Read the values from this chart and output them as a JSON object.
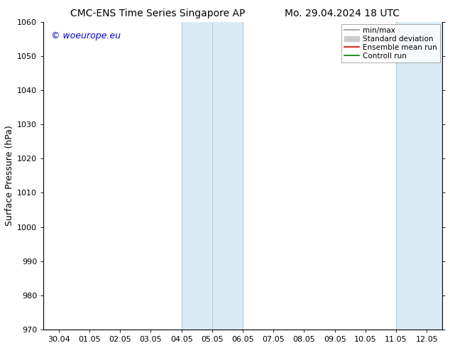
{
  "title_left": "CMC-ENS Time Series Singapore AP",
  "title_right": "Mo. 29.04.2024 18 UTC",
  "ylabel": "Surface Pressure (hPa)",
  "ylim": [
    970,
    1060
  ],
  "yticks": [
    970,
    980,
    990,
    1000,
    1010,
    1020,
    1030,
    1040,
    1050,
    1060
  ],
  "xtick_labels": [
    "30.04",
    "01.05",
    "02.05",
    "03.05",
    "04.05",
    "05.05",
    "06.05",
    "07.05",
    "08.05",
    "09.05",
    "10.05",
    "11.05",
    "12.05"
  ],
  "xtick_positions": [
    0,
    1,
    2,
    3,
    4,
    5,
    6,
    7,
    8,
    9,
    10,
    11,
    12
  ],
  "shaded_regions": [
    {
      "xmin": 4.0,
      "xmax": 6.0
    },
    {
      "xmin": 11.0,
      "xmax": 12.5
    }
  ],
  "inner_vlines": [
    5.0
  ],
  "shade_color": "#daeaf5",
  "vline_color": "#adc8e0",
  "watermark_text": "© woeurope.eu",
  "watermark_color": "#0000cc",
  "legend_items": [
    {
      "label": "min/max",
      "color": "#999999",
      "lw": 1.2,
      "type": "line"
    },
    {
      "label": "Standard deviation",
      "color": "#cccccc",
      "lw": 5,
      "type": "bar"
    },
    {
      "label": "Ensemble mean run",
      "color": "#cc0000",
      "lw": 1.2,
      "type": "line"
    },
    {
      "label": "Controll run",
      "color": "#007700",
      "lw": 1.2,
      "type": "line"
    }
  ],
  "bg_color": "#ffffff",
  "title_fontsize": 10,
  "ylabel_fontsize": 9,
  "tick_fontsize": 8,
  "legend_fontsize": 7.5,
  "watermark_fontsize": 9
}
